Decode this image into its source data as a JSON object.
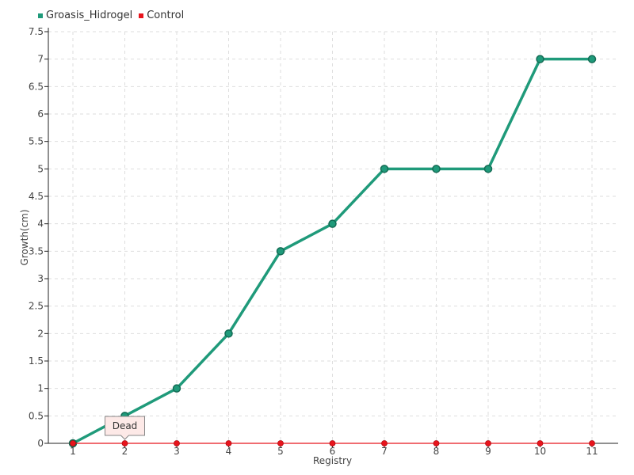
{
  "legend": {
    "items": [
      {
        "name": "Groasis_Hidrogel",
        "color": "#1f9a7a"
      },
      {
        "name": "Control",
        "color": "#e8141c"
      }
    ]
  },
  "tooltip": {
    "text": "Dead",
    "x": 2,
    "series": "Control"
  },
  "chart_data": {
    "type": "line",
    "x": [
      1,
      2,
      3,
      4,
      5,
      6,
      7,
      8,
      9,
      10,
      11
    ],
    "xlabel": "Registry",
    "ylabel": "Growth(cm)",
    "ylim": [
      0,
      7.5
    ],
    "yticks": [
      0,
      0.5,
      1,
      1.5,
      2,
      2.5,
      3,
      3.5,
      4,
      4.5,
      5,
      5.5,
      6,
      6.5,
      7,
      7.5
    ],
    "ytick_labels": [
      "0",
      "0.5",
      "1",
      "1.5",
      "2",
      "2.5",
      "3",
      "3.5",
      "4",
      "4.5",
      "5",
      "5.5",
      "6",
      "6.5",
      "7",
      "7.5"
    ],
    "xtick_labels": [
      "1",
      "2",
      "3",
      "4",
      "5",
      "6",
      "7",
      "8",
      "9",
      "10",
      "11"
    ],
    "grid": true,
    "legend_position": "top-left",
    "series": [
      {
        "name": "Groasis_Hidrogel",
        "color": "#1f9a7a",
        "values": [
          0,
          0.5,
          1,
          2,
          3.5,
          4,
          5,
          5,
          5,
          7,
          7
        ]
      },
      {
        "name": "Control",
        "color": "#e8141c",
        "values": [
          0,
          0,
          0,
          0,
          0,
          0,
          0,
          0,
          0,
          0,
          0
        ]
      }
    ]
  }
}
